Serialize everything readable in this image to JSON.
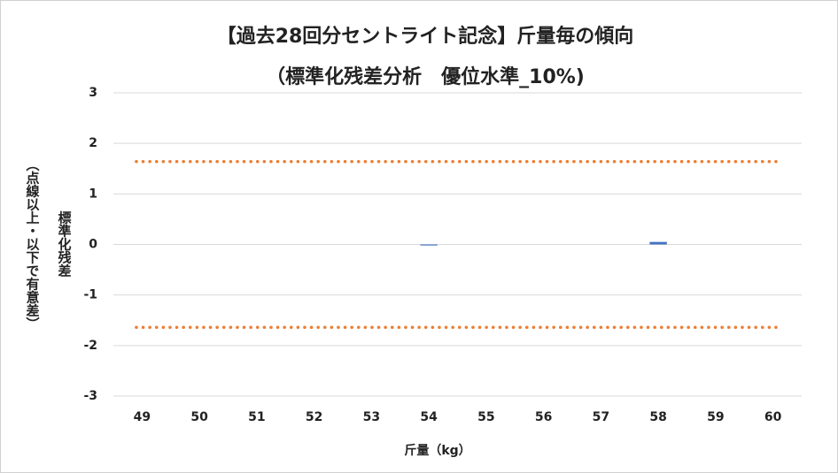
{
  "chart_data": {
    "type": "bar",
    "title": "【過去28回分セントライト記念】斤量毎の傾向",
    "subtitle": "（標準化残差分析　優位水準_10%)",
    "y_label": "標準化残差",
    "y_label_note": "（点線以上・以下で有意差）",
    "x_label": "斤量（kg）",
    "categories": [
      "49",
      "50",
      "51",
      "52",
      "53",
      "54",
      "55",
      "56",
      "57",
      "58",
      "59",
      "60"
    ],
    "values": [
      0,
      0,
      0,
      0,
      0,
      -0.02,
      0,
      0,
      0,
      0.05,
      0,
      0
    ],
    "color": "#4472c4",
    "reference_lines": [
      1.64,
      -1.64
    ],
    "reference_color": "#ed7d31",
    "ylim": [
      -3,
      3
    ],
    "yticks": [
      -3,
      -2,
      -1,
      0,
      1,
      2,
      3
    ],
    "grid": true
  }
}
